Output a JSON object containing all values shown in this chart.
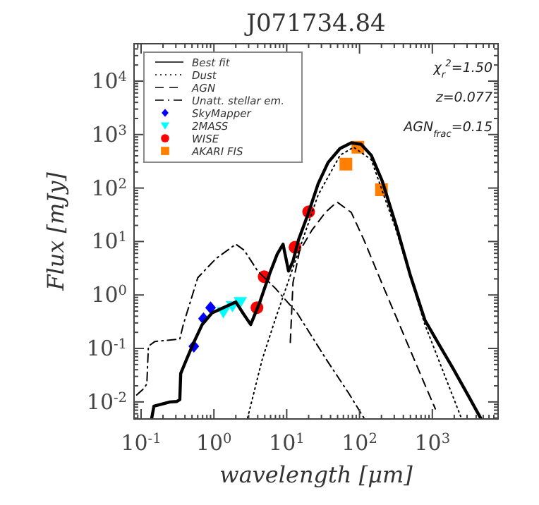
{
  "chart_data": {
    "type": "line",
    "title": "J071734.84",
    "xlabel": "wavelength [μm]",
    "ylabel": "Flux [mJy]",
    "log": "xy",
    "legend": "top left",
    "grid": false,
    "xlim": [
      0.08,
      8000
    ],
    "ylim": [
      0.0048,
      50000
    ],
    "xticks": [
      {
        "value": 0.1,
        "label": "10$^{-1}$"
      },
      {
        "value": 1,
        "label": "10$^{0}$"
      },
      {
        "value": 10,
        "label": "10$^{1}$"
      },
      {
        "value": 100,
        "label": "10$^{2}$"
      },
      {
        "value": 1000,
        "label": "10$^{3}$"
      }
    ],
    "yticks": [
      {
        "value": 0.01,
        "label": "10$^{-2}$"
      },
      {
        "value": 0.1,
        "label": "10$^{-1}$"
      },
      {
        "value": 1,
        "label": "10$^{0}$"
      },
      {
        "value": 10,
        "label": "10$^{1}$"
      },
      {
        "value": 100,
        "label": "10$^{2}$"
      },
      {
        "value": 1000,
        "label": "10$^{3}$"
      },
      {
        "value": 10000,
        "label": "10$^{4}$"
      }
    ],
    "annotations": [
      "χ$_{r}$$^{2}$=1.50",
      "z=0.077",
      "AGN$_{frac}$=0.15"
    ],
    "series": [
      {
        "name": "Best fit",
        "line_style": "solid",
        "color": "#000000",
        "x": [
          0.14,
          0.15,
          0.25,
          0.31,
          0.34,
          0.35,
          0.42,
          0.53,
          0.69,
          0.94,
          1.35,
          2.0,
          2.5,
          3.2,
          4.2,
          5.7,
          7.4,
          8.9,
          10.6,
          12.2,
          14.5,
          20,
          27,
          37,
          54,
          77,
          105,
          145,
          205,
          320,
          500,
          790,
          1230,
          1950,
          3000,
          4600
        ],
        "values": [
          0.005,
          0.0083,
          0.01,
          0.0102,
          0.011,
          0.034,
          0.062,
          0.13,
          0.28,
          0.46,
          0.58,
          0.74,
          0.46,
          0.28,
          0.69,
          2.3,
          5.8,
          8.9,
          2.8,
          4.3,
          10.7,
          35,
          120,
          300,
          550,
          700,
          660,
          410,
          135,
          19.5,
          2.3,
          0.34,
          0.12,
          0.041,
          0.0144,
          0.005
        ]
      },
      {
        "name": "Dust",
        "line_style": "dotted",
        "color": "#000000",
        "x": [
          2.9,
          4.6,
          7.1,
          11.2,
          17,
          27,
          54,
          83,
          145,
          320,
          790,
          2500
        ],
        "values": [
          0.005,
          0.062,
          0.38,
          2.3,
          12,
          74,
          410,
          580,
          340,
          16,
          0.28,
          0.005
        ]
      },
      {
        "name": "AGN",
        "line_style": "dashed",
        "color": "#000000",
        "x": [
          11.2,
          12.2,
          15,
          22,
          34,
          49,
          77,
          115,
          205,
          405,
          790,
          1100
        ],
        "values": [
          0.13,
          1.7,
          6.6,
          16,
          35,
          55,
          35,
          10.7,
          1.6,
          0.18,
          0.021,
          0.0074
        ]
      },
      {
        "name": "Unatt. stellar em.",
        "line_style": "dashdot",
        "color": "#000000",
        "x": [
          0.087,
          0.11,
          0.12,
          0.126,
          0.155,
          0.34,
          0.38,
          0.6,
          1.07,
          2.0,
          2.6,
          4.0,
          7.1,
          13.9,
          34,
          70,
          115
        ],
        "values": [
          0.0135,
          0.018,
          0.022,
          0.11,
          0.135,
          0.15,
          0.28,
          2.1,
          4.8,
          8.9,
          6.9,
          2.8,
          1.3,
          0.46,
          0.066,
          0.015,
          0.005
        ]
      },
      {
        "name": "SkyMapper",
        "type": "scatter",
        "marker": "diamond",
        "color": "#0000ff",
        "x": [
          0.53,
          0.72,
          0.9
        ],
        "values": [
          0.11,
          0.36,
          0.58
        ]
      },
      {
        "name": "2MASS",
        "type": "scatter",
        "marker": "triangle",
        "color": "#00ffff",
        "x": [
          1.35,
          1.8,
          2.3
        ],
        "values": [
          0.48,
          0.62,
          0.74
        ]
      },
      {
        "name": "WISE",
        "type": "scatter",
        "marker": "circle",
        "color": "#ff0000",
        "x": [
          3.9,
          4.9,
          13,
          20
        ],
        "values": [
          0.58,
          2.2,
          7.8,
          36
        ]
      },
      {
        "name": "AKARI FIS",
        "type": "scatter",
        "marker": "square",
        "color": "#ff8000",
        "x": [
          65,
          95,
          200
        ],
        "values": [
          280,
          580,
          93
        ]
      }
    ]
  }
}
